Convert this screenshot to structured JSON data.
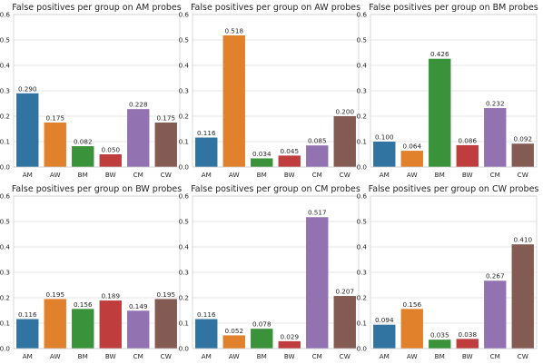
{
  "chart_data": [
    {
      "type": "bar",
      "title": "False positives per group on AM probes",
      "categories": [
        "AM",
        "AW",
        "BM",
        "BW",
        "CM",
        "CW"
      ],
      "values": [
        0.29,
        0.175,
        0.082,
        0.05,
        0.228,
        0.175
      ],
      "data_labels": [
        "0.290",
        "0.175",
        "0.082",
        "0.050",
        "0.228",
        "0.175"
      ],
      "ylim": [
        0,
        0.6
      ],
      "yticks": [
        "0.0",
        "0.1",
        "0.2",
        "0.3",
        "0.4",
        "0.5",
        "0.6"
      ],
      "grid": true
    },
    {
      "type": "bar",
      "title": "False positives per group on AW probes",
      "categories": [
        "AM",
        "AW",
        "BM",
        "BW",
        "CM",
        "CW"
      ],
      "values": [
        0.116,
        0.518,
        0.034,
        0.045,
        0.085,
        0.2
      ],
      "data_labels": [
        "0.116",
        "0.518",
        "0.034",
        "0.045",
        "0.085",
        "0.200"
      ],
      "ylim": [
        0,
        0.6
      ],
      "yticks": [
        "0.0",
        "0.1",
        "0.2",
        "0.3",
        "0.4",
        "0.5",
        "0.6"
      ],
      "grid": true
    },
    {
      "type": "bar",
      "title": "False positives per group on BM probes",
      "categories": [
        "AM",
        "AW",
        "BM",
        "BW",
        "CM",
        "CW"
      ],
      "values": [
        0.1,
        0.064,
        0.426,
        0.086,
        0.232,
        0.092
      ],
      "data_labels": [
        "0.100",
        "0.064",
        "0.426",
        "0.086",
        "0.232",
        "0.092"
      ],
      "ylim": [
        0,
        0.6
      ],
      "yticks": [
        "0.0",
        "0.1",
        "0.2",
        "0.3",
        "0.4",
        "0.5",
        "0.6"
      ],
      "grid": true
    },
    {
      "type": "bar",
      "title": "False positives per group on BW probes",
      "categories": [
        "AM",
        "AW",
        "BM",
        "BW",
        "CM",
        "CW"
      ],
      "values": [
        0.116,
        0.195,
        0.156,
        0.189,
        0.149,
        0.195
      ],
      "data_labels": [
        "0.116",
        "0.195",
        "0.156",
        "0.189",
        "0.149",
        "0.195"
      ],
      "ylim": [
        0,
        0.6
      ],
      "yticks": [
        "0.0",
        "0.1",
        "0.2",
        "0.3",
        "0.4",
        "0.5",
        "0.6"
      ],
      "grid": true
    },
    {
      "type": "bar",
      "title": "False positives per group on CM probes",
      "categories": [
        "AM",
        "AW",
        "BM",
        "BW",
        "CM",
        "CW"
      ],
      "values": [
        0.116,
        0.052,
        0.078,
        0.029,
        0.517,
        0.207
      ],
      "data_labels": [
        "0.116",
        "0.052",
        "0.078",
        "0.029",
        "0.517",
        "0.207"
      ],
      "ylim": [
        0,
        0.6
      ],
      "yticks": [
        "0.0",
        "0.1",
        "0.2",
        "0.3",
        "0.4",
        "0.5",
        "0.6"
      ],
      "grid": true
    },
    {
      "type": "bar",
      "title": "False positives per group on CW probes",
      "categories": [
        "AM",
        "AW",
        "BM",
        "BW",
        "CM",
        "CW"
      ],
      "values": [
        0.094,
        0.156,
        0.035,
        0.038,
        0.267,
        0.41
      ],
      "data_labels": [
        "0.094",
        "0.156",
        "0.035",
        "0.038",
        "0.267",
        "0.410"
      ],
      "ylim": [
        0,
        0.6
      ],
      "yticks": [
        "0.0",
        "0.1",
        "0.2",
        "0.3",
        "0.4",
        "0.5",
        "0.6"
      ],
      "grid": true
    }
  ],
  "colors": {
    "bars": [
      "#3274a1",
      "#e1812c",
      "#3a923a",
      "#c03d3e",
      "#9372b2",
      "#845b53"
    ],
    "grid": "#dcdcdc",
    "text": "#262626"
  }
}
